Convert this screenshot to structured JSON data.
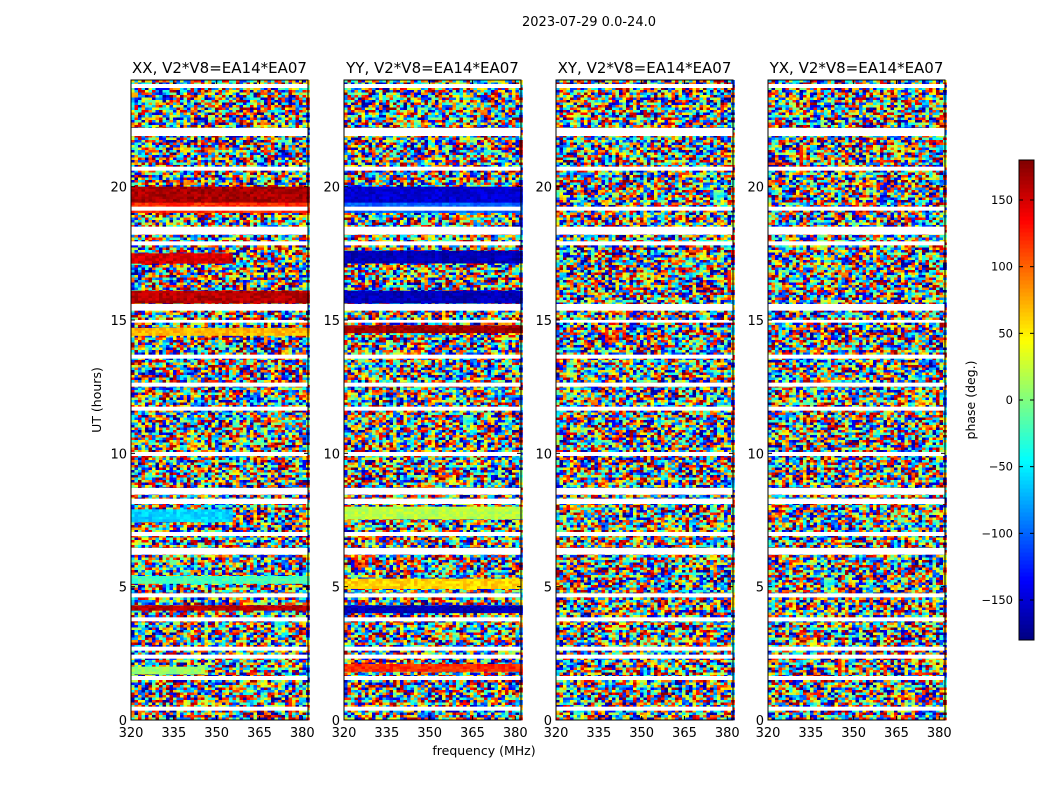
{
  "suptitle": "2023-07-29 0.0-24.0",
  "chart_data": {
    "type": "heatmap",
    "xlabel": "frequency (MHz)",
    "ylabel": "UT (hours)",
    "xlim": [
      320,
      382
    ],
    "ylim": [
      0,
      24
    ],
    "xticks": [
      320,
      335,
      350,
      365,
      380
    ],
    "yticks": [
      0,
      5,
      10,
      15,
      20
    ],
    "panels": [
      {
        "title": "XX, V2*V8=EA14*EA07",
        "coherent_bands": [
          {
            "ut_start": 19.4,
            "ut_end": 20.0,
            "freq_start": 320,
            "freq_end": 382,
            "phase": 165
          },
          {
            "ut_start": 19.1,
            "ut_end": 19.4,
            "freq_start": 320,
            "freq_end": 382,
            "phase": 120
          },
          {
            "ut_start": 17.2,
            "ut_end": 17.5,
            "freq_start": 320,
            "freq_end": 355,
            "phase": 150
          },
          {
            "ut_start": 15.7,
            "ut_end": 16.1,
            "freq_start": 320,
            "freq_end": 382,
            "phase": 160
          },
          {
            "ut_start": 14.5,
            "ut_end": 14.7,
            "freq_start": 320,
            "freq_end": 382,
            "phase": 70
          },
          {
            "ut_start": 7.5,
            "ut_end": 7.9,
            "freq_start": 320,
            "freq_end": 355,
            "phase": -60
          },
          {
            "ut_start": 5.2,
            "ut_end": 5.4,
            "freq_start": 320,
            "freq_end": 382,
            "phase": -20
          },
          {
            "ut_start": 4.2,
            "ut_end": 4.3,
            "freq_start": 320,
            "freq_end": 382,
            "phase": 160
          },
          {
            "ut_start": 1.8,
            "ut_end": 2.0,
            "freq_start": 320,
            "freq_end": 345,
            "phase": 10
          }
        ]
      },
      {
        "title": "YY, V2*V8=EA14*EA07",
        "coherent_bands": [
          {
            "ut_start": 19.4,
            "ut_end": 20.0,
            "freq_start": 320,
            "freq_end": 382,
            "phase": -150
          },
          {
            "ut_start": 19.1,
            "ut_end": 19.4,
            "freq_start": 320,
            "freq_end": 382,
            "phase": -100
          },
          {
            "ut_start": 17.2,
            "ut_end": 17.6,
            "freq_start": 320,
            "freq_end": 382,
            "phase": -160
          },
          {
            "ut_start": 15.7,
            "ut_end": 16.1,
            "freq_start": 320,
            "freq_end": 382,
            "phase": -160
          },
          {
            "ut_start": 14.6,
            "ut_end": 14.8,
            "freq_start": 320,
            "freq_end": 382,
            "phase": 170
          },
          {
            "ut_start": 7.6,
            "ut_end": 8.0,
            "freq_start": 320,
            "freq_end": 382,
            "phase": 20
          },
          {
            "ut_start": 5.0,
            "ut_end": 5.3,
            "freq_start": 320,
            "freq_end": 382,
            "phase": 60
          },
          {
            "ut_start": 4.1,
            "ut_end": 4.3,
            "freq_start": 320,
            "freq_end": 382,
            "phase": -160
          },
          {
            "ut_start": 1.9,
            "ut_end": 2.1,
            "freq_start": 320,
            "freq_end": 382,
            "phase": 120
          }
        ]
      },
      {
        "title": "XY, V2*V8=EA14*EA07",
        "coherent_bands": []
      },
      {
        "title": "YX, V2*V8=EA14*EA07",
        "coherent_bands": []
      }
    ],
    "flagged_ut_bands": [
      [
        23.7,
        23.85
      ],
      [
        21.9,
        22.2
      ],
      [
        20.6,
        20.75
      ],
      [
        19.1,
        19.25
      ],
      [
        18.2,
        18.5
      ],
      [
        17.8,
        17.95
      ],
      [
        15.35,
        15.6
      ],
      [
        14.9,
        15.0
      ],
      [
        13.55,
        13.7
      ],
      [
        12.5,
        12.65
      ],
      [
        11.6,
        11.75
      ],
      [
        9.9,
        10.05
      ],
      [
        8.45,
        8.7
      ],
      [
        8.1,
        8.3
      ],
      [
        6.9,
        7.05
      ],
      [
        6.2,
        6.45
      ],
      [
        4.6,
        4.75
      ],
      [
        3.7,
        3.85
      ],
      [
        2.6,
        2.75
      ],
      [
        2.3,
        2.45
      ],
      [
        1.5,
        1.65
      ],
      [
        0.35,
        0.5
      ]
    ],
    "colorbar": {
      "label": "phase (deg.)",
      "range": [
        -180,
        180
      ],
      "ticks": [
        150,
        100,
        50,
        0,
        -50,
        -100,
        -150
      ],
      "tick_labels": [
        "150",
        "100",
        "50",
        "0",
        "−50",
        "−100",
        "−150"
      ],
      "colormap": "jet"
    }
  }
}
